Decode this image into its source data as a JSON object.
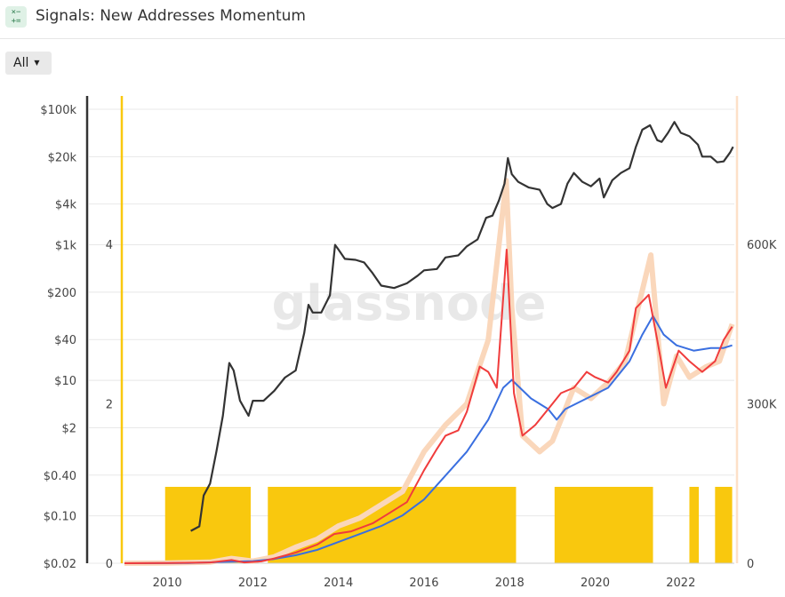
{
  "header": {
    "title": "Signals: New Addresses Momentum",
    "icon": "signals-icon",
    "icon_glyph": "×−\n+="
  },
  "controls": {
    "range_label": "All"
  },
  "watermark": "glassnode",
  "colors": {
    "price": "#333333",
    "short_ma": "#f03c3c",
    "long_ma": "#3a6fe0",
    "raw": "#fad7bb",
    "signal": "#f9c80e",
    "grid": "#e8e8e8",
    "left_axis": "#333333",
    "mid_axis": "#f9c80e",
    "right_axis": "#fde0c8"
  },
  "chart_data": {
    "type": "line",
    "title": "",
    "xlabel": "",
    "x_ticks": [
      "2010",
      "2012",
      "2014",
      "2016",
      "2018",
      "2020",
      "2022"
    ],
    "x_range": [
      "2009-01",
      "2023-03"
    ],
    "y_price_ticks": [
      "$100k",
      "$20k",
      "$4k",
      "$1k",
      "$200",
      "$40",
      "$10",
      "$2",
      "$0.40",
      "$0.10",
      "$0.02"
    ],
    "y_price_log_range": [
      0.02,
      100000
    ],
    "y_signal_ticks": [
      "4",
      "2",
      "0"
    ],
    "y_signal_range": [
      0,
      4
    ],
    "y_addresses_ticks": [
      "600K",
      "300K",
      "0"
    ],
    "y_addresses_range": [
      0,
      600000
    ],
    "grid": true,
    "series": [
      {
        "key": "price",
        "axis": "price",
        "points": [
          [
            2010.55,
            0.06
          ],
          [
            2010.75,
            0.07
          ],
          [
            2010.85,
            0.2
          ],
          [
            2011.0,
            0.3
          ],
          [
            2011.15,
            0.9
          ],
          [
            2011.3,
            3
          ],
          [
            2011.45,
            18
          ],
          [
            2011.55,
            14
          ],
          [
            2011.7,
            5
          ],
          [
            2011.9,
            3
          ],
          [
            2012.0,
            5
          ],
          [
            2012.25,
            5
          ],
          [
            2012.5,
            7
          ],
          [
            2012.75,
            11
          ],
          [
            2013.0,
            14
          ],
          [
            2013.2,
            50
          ],
          [
            2013.3,
            130
          ],
          [
            2013.4,
            100
          ],
          [
            2013.6,
            100
          ],
          [
            2013.8,
            180
          ],
          [
            2013.92,
            1000
          ],
          [
            2014.0,
            850
          ],
          [
            2014.15,
            620
          ],
          [
            2014.4,
            600
          ],
          [
            2014.6,
            550
          ],
          [
            2014.8,
            380
          ],
          [
            2015.0,
            250
          ],
          [
            2015.3,
            230
          ],
          [
            2015.6,
            270
          ],
          [
            2015.85,
            350
          ],
          [
            2016.0,
            420
          ],
          [
            2016.3,
            440
          ],
          [
            2016.5,
            650
          ],
          [
            2016.8,
            700
          ],
          [
            2017.0,
            950
          ],
          [
            2017.25,
            1200
          ],
          [
            2017.45,
            2500
          ],
          [
            2017.6,
            2700
          ],
          [
            2017.75,
            4500
          ],
          [
            2017.88,
            8000
          ],
          [
            2017.96,
            19000
          ],
          [
            2018.05,
            11000
          ],
          [
            2018.2,
            8500
          ],
          [
            2018.45,
            7000
          ],
          [
            2018.7,
            6500
          ],
          [
            2018.88,
            4000
          ],
          [
            2019.0,
            3500
          ],
          [
            2019.2,
            4000
          ],
          [
            2019.35,
            8000
          ],
          [
            2019.5,
            11500
          ],
          [
            2019.7,
            8500
          ],
          [
            2019.9,
            7300
          ],
          [
            2020.1,
            9500
          ],
          [
            2020.2,
            5000
          ],
          [
            2020.4,
            9000
          ],
          [
            2020.6,
            11500
          ],
          [
            2020.8,
            13500
          ],
          [
            2020.95,
            28000
          ],
          [
            2021.1,
            50000
          ],
          [
            2021.28,
            58000
          ],
          [
            2021.45,
            35000
          ],
          [
            2021.55,
            33000
          ],
          [
            2021.7,
            45000
          ],
          [
            2021.85,
            65000
          ],
          [
            2022.0,
            45000
          ],
          [
            2022.2,
            40000
          ],
          [
            2022.4,
            30000
          ],
          [
            2022.5,
            20000
          ],
          [
            2022.7,
            20000
          ],
          [
            2022.85,
            16500
          ],
          [
            2023.0,
            17000
          ],
          [
            2023.15,
            23000
          ],
          [
            2023.22,
            28000
          ]
        ]
      },
      {
        "key": "addresses_raw",
        "axis": "addresses",
        "points": [
          [
            2009.0,
            0
          ],
          [
            2010.0,
            500
          ],
          [
            2011.0,
            2000
          ],
          [
            2011.5,
            9000
          ],
          [
            2012.0,
            4000
          ],
          [
            2012.5,
            12000
          ],
          [
            2013.0,
            30000
          ],
          [
            2013.5,
            45000
          ],
          [
            2014.0,
            70000
          ],
          [
            2014.5,
            85000
          ],
          [
            2015.0,
            110000
          ],
          [
            2015.5,
            135000
          ],
          [
            2016.0,
            210000
          ],
          [
            2016.5,
            260000
          ],
          [
            2017.0,
            300000
          ],
          [
            2017.5,
            420000
          ],
          [
            2017.92,
            720000
          ],
          [
            2018.05,
            480000
          ],
          [
            2018.3,
            240000
          ],
          [
            2018.7,
            210000
          ],
          [
            2019.0,
            230000
          ],
          [
            2019.5,
            330000
          ],
          [
            2019.9,
            310000
          ],
          [
            2020.3,
            340000
          ],
          [
            2020.7,
            380000
          ],
          [
            2021.0,
            480000
          ],
          [
            2021.3,
            580000
          ],
          [
            2021.6,
            300000
          ],
          [
            2021.9,
            390000
          ],
          [
            2022.2,
            350000
          ],
          [
            2022.6,
            370000
          ],
          [
            2022.9,
            380000
          ],
          [
            2023.2,
            450000
          ]
        ]
      },
      {
        "key": "addresses_short_ma",
        "axis": "addresses",
        "points": [
          [
            2009.0,
            0
          ],
          [
            2010.0,
            300
          ],
          [
            2011.0,
            1500
          ],
          [
            2011.5,
            6000
          ],
          [
            2011.8,
            1500
          ],
          [
            2012.2,
            3500
          ],
          [
            2012.5,
            9000
          ],
          [
            2013.0,
            20000
          ],
          [
            2013.5,
            35000
          ],
          [
            2013.9,
            55000
          ],
          [
            2014.3,
            60000
          ],
          [
            2014.8,
            75000
          ],
          [
            2015.2,
            95000
          ],
          [
            2015.6,
            115000
          ],
          [
            2016.0,
            175000
          ],
          [
            2016.3,
            215000
          ],
          [
            2016.5,
            240000
          ],
          [
            2016.8,
            250000
          ],
          [
            2017.0,
            285000
          ],
          [
            2017.3,
            370000
          ],
          [
            2017.5,
            360000
          ],
          [
            2017.7,
            330000
          ],
          [
            2017.93,
            590000
          ],
          [
            2018.1,
            320000
          ],
          [
            2018.3,
            240000
          ],
          [
            2018.6,
            260000
          ],
          [
            2018.9,
            290000
          ],
          [
            2019.2,
            320000
          ],
          [
            2019.5,
            330000
          ],
          [
            2019.8,
            360000
          ],
          [
            2020.0,
            350000
          ],
          [
            2020.3,
            340000
          ],
          [
            2020.5,
            360000
          ],
          [
            2020.8,
            400000
          ],
          [
            2020.95,
            480000
          ],
          [
            2021.25,
            505000
          ],
          [
            2021.45,
            420000
          ],
          [
            2021.65,
            330000
          ],
          [
            2021.95,
            400000
          ],
          [
            2022.2,
            380000
          ],
          [
            2022.5,
            360000
          ],
          [
            2022.8,
            380000
          ],
          [
            2023.0,
            420000
          ],
          [
            2023.2,
            445000
          ]
        ]
      },
      {
        "key": "addresses_long_ma",
        "axis": "addresses",
        "points": [
          [
            2009.0,
            0
          ],
          [
            2010.5,
            500
          ],
          [
            2011.5,
            3000
          ],
          [
            2012.0,
            4000
          ],
          [
            2012.5,
            8000
          ],
          [
            2013.0,
            15000
          ],
          [
            2013.5,
            25000
          ],
          [
            2014.0,
            40000
          ],
          [
            2014.5,
            55000
          ],
          [
            2015.0,
            70000
          ],
          [
            2015.5,
            90000
          ],
          [
            2016.0,
            120000
          ],
          [
            2016.5,
            165000
          ],
          [
            2017.0,
            210000
          ],
          [
            2017.5,
            270000
          ],
          [
            2017.85,
            330000
          ],
          [
            2018.05,
            345000
          ],
          [
            2018.5,
            310000
          ],
          [
            2018.9,
            290000
          ],
          [
            2019.1,
            270000
          ],
          [
            2019.3,
            290000
          ],
          [
            2019.8,
            310000
          ],
          [
            2020.3,
            330000
          ],
          [
            2020.8,
            380000
          ],
          [
            2021.1,
            430000
          ],
          [
            2021.35,
            465000
          ],
          [
            2021.6,
            430000
          ],
          [
            2021.9,
            410000
          ],
          [
            2022.3,
            400000
          ],
          [
            2022.7,
            405000
          ],
          [
            2023.0,
            405000
          ],
          [
            2023.2,
            410000
          ]
        ]
      }
    ],
    "signal_periods": [
      [
        2009.95,
        2011.95
      ],
      [
        2012.35,
        2018.15
      ],
      [
        2019.05,
        2021.35
      ],
      [
        2022.2,
        2022.42
      ],
      [
        2022.8,
        2023.2
      ]
    ]
  }
}
